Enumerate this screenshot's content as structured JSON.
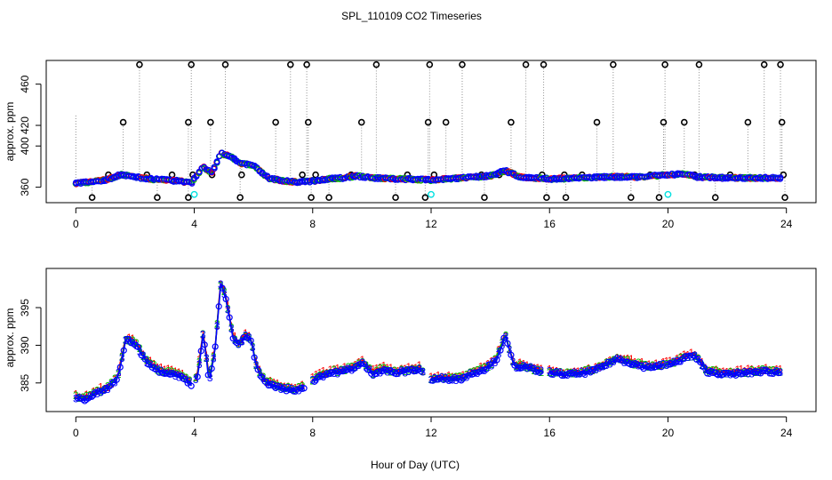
{
  "figure": {
    "title": "SPL_110109  CO2 Timeseries",
    "xlabel": "Hour of Day (UTC)"
  },
  "colors": {
    "black": "#000000",
    "red": "#ff0000",
    "green": "#00bb00",
    "blue": "#0000ff",
    "cyan": "#00e0e0",
    "grid_dotted": "#909090"
  },
  "chart_data": [
    {
      "type": "scatter",
      "name": "top-panel",
      "ylabel": "approx. ppm",
      "xlim": [
        -1,
        25
      ],
      "ylim": [
        345,
        483
      ],
      "xticks": [
        0,
        4,
        8,
        12,
        16,
        20,
        24
      ],
      "yticks": [
        360,
        400,
        420,
        460
      ],
      "ytick_labels": [
        "360",
        "400",
        "420",
        "460"
      ],
      "baseline": {
        "x": [
          0,
          0.5,
          1,
          1.5,
          2,
          2.5,
          3,
          3.5,
          3.9,
          4.05,
          4.3,
          4.6,
          4.9,
          5.2,
          5.6,
          6,
          6.5,
          7,
          7.5,
          8,
          8.5,
          9,
          9.5,
          10,
          11,
          12,
          12.5,
          13,
          14,
          14.5,
          15,
          16,
          17,
          18,
          19,
          20,
          20.5,
          21,
          22,
          23,
          23.8
        ],
        "y": [
          364,
          365,
          367,
          372,
          370,
          368,
          367,
          366,
          364,
          370,
          380,
          374,
          393,
          390,
          383,
          381,
          369,
          366,
          365,
          366,
          368,
          369,
          371,
          369,
          368,
          367,
          368,
          369,
          371,
          376,
          370,
          368,
          369,
          370,
          370,
          372,
          373,
          370,
          369,
          369,
          369
        ]
      },
      "spikes_high": [
        2.15,
        3.9,
        5.05,
        7.25,
        7.8,
        10.15,
        11.95,
        13.05,
        15.2,
        15.8,
        18.15,
        19.9,
        21.05,
        23.25,
        23.8
      ],
      "spikes_mid": [
        1.6,
        3.8,
        4.55,
        6.75,
        7.85,
        9.65,
        11.9,
        12.5,
        14.7,
        17.6,
        19.85,
        20.55,
        22.7,
        23.85
      ],
      "spikes_low": [
        1.1,
        2.4,
        3.25,
        3.95,
        4.6,
        5.6,
        7.65,
        8.1,
        9.3,
        11.2,
        12.1,
        13.7,
        14.3,
        15.75,
        16.5,
        17.1,
        19.4,
        19.8,
        20.9,
        22.1,
        23.9
      ],
      "spikes_bottom": [
        0.55,
        2.75,
        3.8,
        5.55,
        7.95,
        8.55,
        10.8,
        11.8,
        13.8,
        15.9,
        16.55,
        18.75,
        19.7,
        21.6,
        23.95
      ],
      "cyan_points": [
        {
          "x": 4.0,
          "y": 353
        },
        {
          "x": 12.0,
          "y": 353
        },
        {
          "x": 20.0,
          "y": 353
        }
      ]
    },
    {
      "type": "line",
      "name": "bottom-panel",
      "ylabel": "approx. ppm",
      "xlim": [
        -1,
        25
      ],
      "ylim": [
        381.2,
        400.2
      ],
      "xticks": [
        0,
        4,
        8,
        12,
        16,
        20,
        24
      ],
      "yticks": [
        385,
        390,
        395
      ],
      "ytick_labels": [
        "385",
        "390",
        "395"
      ],
      "series": [
        {
          "name": "1",
          "color": "red",
          "marker": "1"
        },
        {
          "name": "2",
          "color": "green",
          "marker": "2"
        },
        {
          "name": "3",
          "color": "blue",
          "marker": "3"
        }
      ],
      "base_curve": {
        "x": [
          0,
          0.3,
          0.7,
          1.1,
          1.4,
          1.7,
          2.0,
          2.4,
          2.8,
          3.2,
          3.6,
          3.9,
          4.1,
          4.3,
          4.5,
          4.7,
          4.9,
          5.1,
          5.3,
          5.5,
          5.7,
          5.9,
          6.1,
          6.4,
          6.7,
          7.0,
          7.4,
          7.8,
          8.2,
          8.6,
          9.0,
          9.4,
          9.7,
          10.0,
          10.4,
          10.8,
          11.2,
          11.6,
          12.0,
          12.5,
          13.0,
          13.4,
          13.8,
          14.2,
          14.5,
          14.8,
          15.2,
          15.6,
          16.0,
          16.5,
          17.0,
          17.5,
          18.0,
          18.3,
          18.7,
          19.2,
          19.7,
          20.2,
          20.6,
          20.9,
          21.3,
          22.0,
          22.6,
          23.2,
          23.8
        ],
        "y": [
          383,
          382.8,
          383.6,
          384.3,
          385.5,
          390.8,
          390.2,
          387.8,
          386.6,
          386.3,
          385.7,
          384.8,
          385.6,
          391.5,
          385.3,
          389.3,
          398.4,
          395.5,
          391.0,
          389.9,
          391.2,
          390.8,
          387.1,
          385.0,
          384.6,
          384.2,
          384.0,
          384.6,
          385.8,
          386.3,
          386.5,
          387.0,
          387.6,
          386.2,
          386.7,
          386.3,
          386.6,
          386.8,
          385.4,
          385.6,
          385.5,
          386.3,
          386.8,
          388.0,
          391.2,
          387.2,
          387.1,
          386.5,
          386.4,
          386.1,
          386.2,
          386.6,
          387.6,
          388.2,
          387.7,
          387.1,
          387.2,
          387.6,
          388.4,
          388.6,
          386.5,
          386.1,
          386.3,
          386.5,
          386.4
        ]
      }
    }
  ]
}
